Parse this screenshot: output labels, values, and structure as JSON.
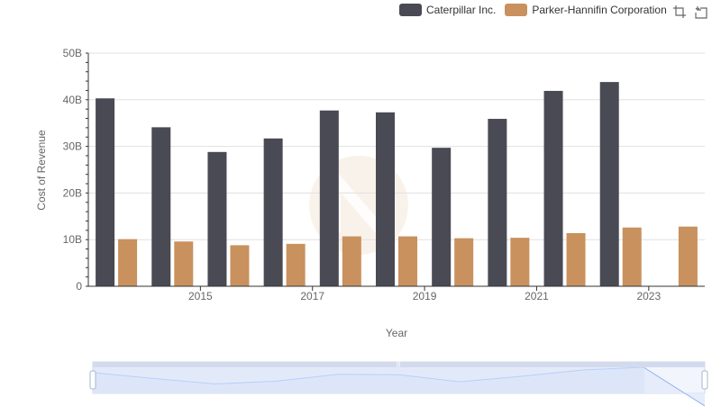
{
  "colors": {
    "caterpillar": "#4a4a55",
    "parker": "#c8915e",
    "grid": "#e0e0e0",
    "axis": "#333333",
    "slider_fill": "#d7e2f9",
    "slider_line": "#8fb0f7"
  },
  "toolbox": {
    "zoom_icon": "data-zoom-icon",
    "reset_icon": "zoom-reset-icon"
  },
  "chart_data": {
    "type": "bar",
    "title": "",
    "xlabel": "Year",
    "ylabel": "Cost of Revenue",
    "ylim": [
      0,
      50000000000
    ],
    "yticks": [
      "0",
      "10B",
      "20B",
      "30B",
      "40B",
      "50B"
    ],
    "categories": [
      "2014",
      "2015",
      "2016",
      "2017",
      "2018",
      "2019",
      "2020",
      "2021",
      "2022",
      "2023",
      "2024"
    ],
    "xtick_labels": [
      "2015",
      "2017",
      "2019",
      "2021",
      "2023"
    ],
    "legend_position": "top-right",
    "series": [
      {
        "name": "Caterpillar Inc.",
        "values": [
          40300000000,
          34100000000,
          28800000000,
          31700000000,
          37700000000,
          37300000000,
          29700000000,
          35900000000,
          41900000000,
          43800000000,
          null
        ]
      },
      {
        "name": "Parker-Hannifin Corporation",
        "values": [
          10100000000,
          9600000000,
          8800000000,
          9100000000,
          10700000000,
          10700000000,
          10300000000,
          10400000000,
          11400000000,
          12600000000,
          12800000000
        ]
      }
    ]
  }
}
